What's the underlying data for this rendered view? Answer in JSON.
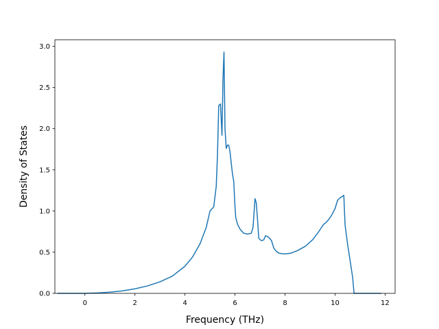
{
  "chart_data": {
    "type": "line",
    "title": "",
    "xlabel": "Frequency (THz)",
    "ylabel": "Density of States",
    "xlim": [
      -1.2,
      12.4
    ],
    "ylim": [
      0,
      3.08
    ],
    "xticks": [
      0,
      2,
      4,
      6,
      8,
      10,
      12
    ],
    "xtick_labels": [
      "0",
      "2",
      "4",
      "6",
      "8",
      "10",
      "12"
    ],
    "yticks": [
      0.0,
      0.5,
      1.0,
      1.5,
      2.0,
      2.5,
      3.0
    ],
    "ytick_labels": [
      "0.0",
      "0.5",
      "1.0",
      "1.5",
      "2.0",
      "2.5",
      "3.0"
    ],
    "grid": false,
    "line_color": "#1f77b4",
    "series": [
      {
        "x": [
          -1.1,
          0.0,
          0.5,
          1.0,
          1.5,
          2.0,
          2.5,
          3.0,
          3.5,
          4.0,
          4.3,
          4.6,
          4.85,
          5.0,
          5.15,
          5.25,
          5.3,
          5.35,
          5.42,
          5.48,
          5.52,
          5.56,
          5.6,
          5.65,
          5.7,
          5.75,
          5.8,
          5.85,
          5.9,
          5.95,
          6.0,
          6.03,
          6.1,
          6.2,
          6.35,
          6.5,
          6.65,
          6.72,
          6.8,
          6.85,
          6.9,
          6.95,
          7.05,
          7.15,
          7.22,
          7.3,
          7.38,
          7.46,
          7.55,
          7.65,
          7.75,
          7.9,
          8.05,
          8.25,
          8.5,
          8.8,
          9.1,
          9.35,
          9.5,
          9.55,
          9.6,
          9.7,
          9.8,
          9.9,
          10.0,
          10.1,
          10.2,
          10.35,
          10.4,
          10.5,
          10.6,
          10.7,
          10.76,
          10.85,
          11.85
        ],
        "y": [
          0.0,
          0.0,
          0.005,
          0.015,
          0.03,
          0.055,
          0.09,
          0.14,
          0.21,
          0.33,
          0.44,
          0.6,
          0.8,
          1.0,
          1.05,
          1.3,
          1.68,
          2.28,
          2.3,
          1.92,
          2.6,
          2.93,
          2.0,
          1.76,
          1.8,
          1.8,
          1.72,
          1.58,
          1.45,
          1.36,
          1.05,
          0.92,
          0.84,
          0.78,
          0.73,
          0.72,
          0.73,
          0.8,
          1.15,
          1.1,
          0.9,
          0.67,
          0.64,
          0.65,
          0.7,
          0.69,
          0.67,
          0.64,
          0.55,
          0.51,
          0.49,
          0.48,
          0.48,
          0.49,
          0.52,
          0.57,
          0.65,
          0.75,
          0.82,
          0.84,
          0.85,
          0.88,
          0.92,
          0.97,
          1.03,
          1.13,
          1.16,
          1.19,
          0.83,
          0.6,
          0.4,
          0.2,
          0.0,
          0.0,
          0.0
        ]
      }
    ]
  }
}
